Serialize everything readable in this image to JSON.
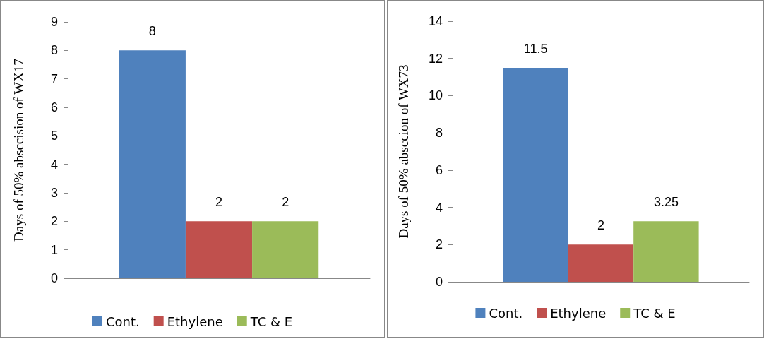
{
  "chart_data": [
    {
      "type": "bar",
      "ylabel": "Days of 50% absccision of WX17",
      "categories": [
        null
      ],
      "series": [
        {
          "name": "Cont.",
          "color": "#4f81bd",
          "values": [
            8
          ]
        },
        {
          "name": "Ethylene",
          "color": "#c0504d",
          "values": [
            2
          ]
        },
        {
          "name": "TC & E",
          "color": "#9bbb59",
          "values": [
            2
          ]
        }
      ],
      "ylim": [
        0,
        9
      ],
      "yticks": [
        0,
        1,
        2,
        3,
        4,
        5,
        6,
        7,
        8,
        9
      ],
      "data_labels": true,
      "legend": "bottom",
      "grid": false
    },
    {
      "type": "bar",
      "ylabel": "Days of 50% absccion of WX73",
      "categories": [
        null
      ],
      "series": [
        {
          "name": "Cont.",
          "color": "#4f81bd",
          "values": [
            11.5
          ]
        },
        {
          "name": "Ethylene",
          "color": "#c0504d",
          "values": [
            2
          ]
        },
        {
          "name": "TC & E",
          "color": "#9bbb59",
          "values": [
            3.25
          ]
        }
      ],
      "ylim": [
        0,
        14
      ],
      "yticks": [
        0,
        2,
        4,
        6,
        8,
        10,
        12,
        14
      ],
      "data_labels": true,
      "legend": "bottom",
      "grid": false
    }
  ]
}
